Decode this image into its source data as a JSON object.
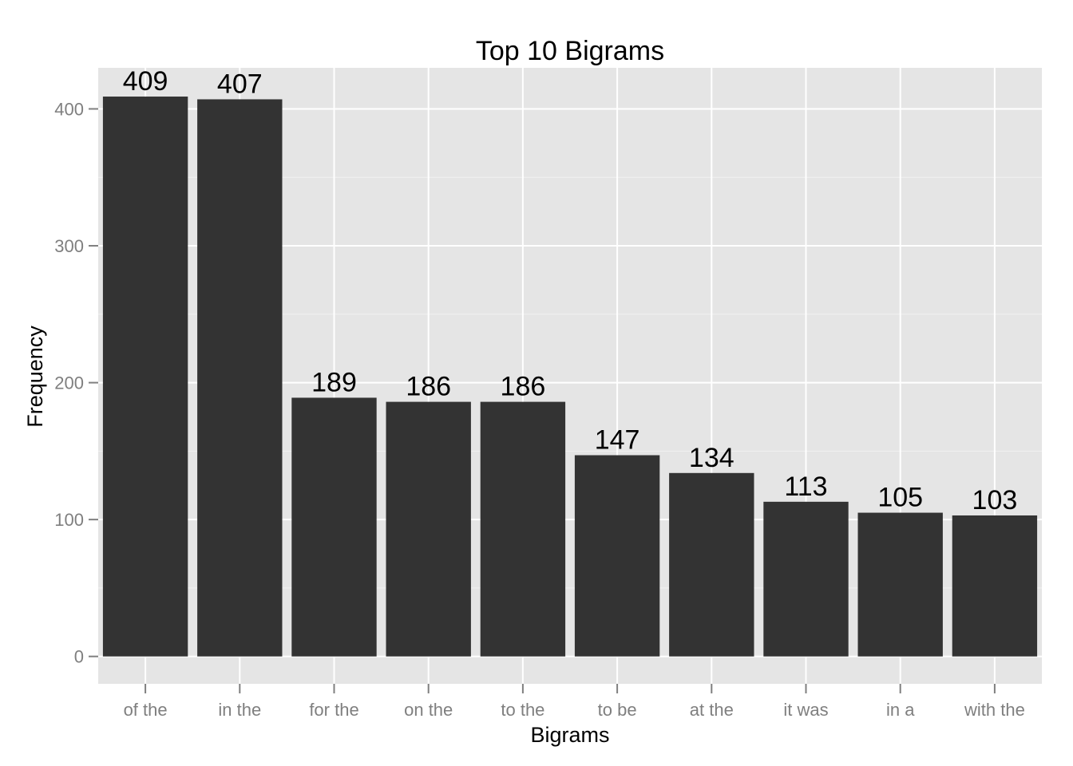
{
  "chart_data": {
    "type": "bar",
    "title": "Top 10 Bigrams",
    "xlabel": "Bigrams",
    "ylabel": "Frequency",
    "categories": [
      "of the",
      "in the",
      "for the",
      "on the",
      "to the",
      "to be",
      "at the",
      "it was",
      "in a",
      "with the"
    ],
    "values": [
      409,
      407,
      189,
      186,
      186,
      147,
      134,
      113,
      105,
      103
    ],
    "data_labels": [
      "409",
      "407",
      "189",
      "186",
      "186",
      "147",
      "134",
      "113",
      "105",
      "103"
    ],
    "ylim": [
      -20,
      430
    ],
    "yticks": [
      0,
      100,
      200,
      300,
      400
    ],
    "ytick_labels": [
      "0",
      "100",
      "200",
      "300",
      "400"
    ],
    "grid": true,
    "legend": "none",
    "colors": {
      "panel": "#e5e5e5",
      "grid_major": "#ffffff",
      "grid_minor": "#f2f2f2",
      "bar": "#333333",
      "tick_text": "#7f7f7f",
      "tick_mark": "#7f7f7f",
      "text": "#000000"
    }
  }
}
